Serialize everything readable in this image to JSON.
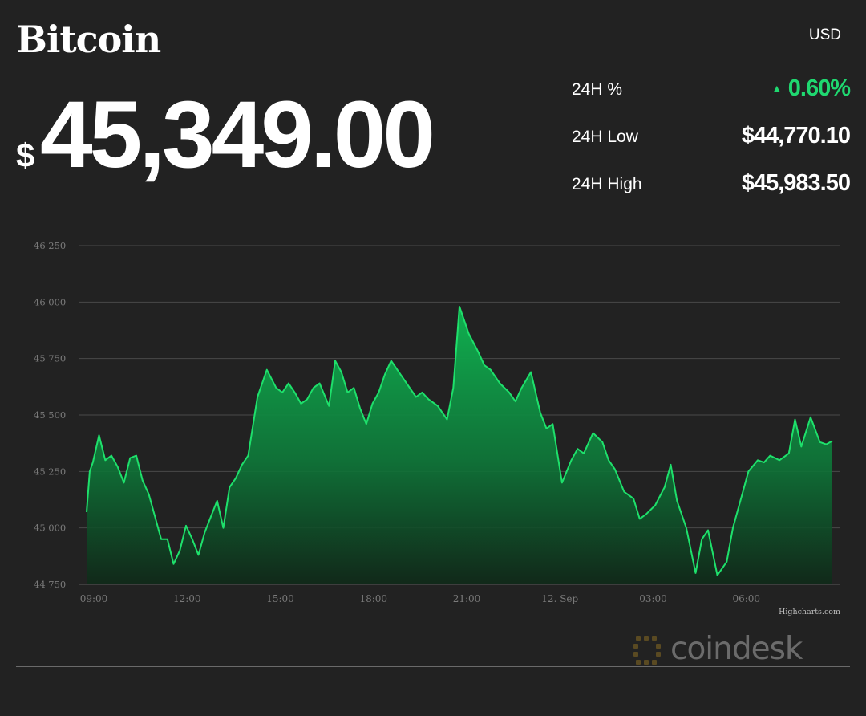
{
  "header": {
    "title": "Bitcoin",
    "currency": "USD",
    "price_symbol": "$",
    "price": "45,349.00"
  },
  "stats": [
    {
      "label": "24H %",
      "value": "0.60%",
      "direction": "up"
    },
    {
      "label": "24H Low",
      "value": "$44,770.10"
    },
    {
      "label": "24H High",
      "value": "$45,983.50"
    }
  ],
  "colors": {
    "background": "#222222",
    "line": "#1ee06b",
    "positive": "#1fd870",
    "grid": "#4a4a4a",
    "axis_text": "#7a7a7a"
  },
  "chart_data": {
    "type": "area",
    "title": "",
    "xlabel": "",
    "ylabel": "",
    "ylim": [
      44750,
      46250
    ],
    "yticks": [
      "46 250",
      "46 000",
      "45 750",
      "45 500",
      "45 250",
      "45 000",
      "44 750"
    ],
    "xticks": [
      "09:00",
      "12:00",
      "15:00",
      "18:00",
      "21:00",
      "12. Sep",
      "03:00",
      "06:00"
    ],
    "grid": true,
    "credit": "Highcharts.com",
    "series": [
      {
        "hours": [
          0,
          0.1,
          0.2,
          0.4,
          0.6,
          0.8,
          1.0,
          1.2,
          1.4,
          1.6,
          1.8,
          2.0,
          2.2,
          2.4,
          2.6,
          2.8,
          3.0,
          3.2,
          3.4,
          3.6,
          3.8,
          4.0,
          4.2,
          4.4,
          4.6,
          4.8,
          5.0,
          5.2,
          5.5,
          5.8,
          6.1,
          6.3,
          6.5,
          6.7,
          6.9,
          7.1,
          7.3,
          7.5,
          7.8,
          8.0,
          8.2,
          8.4,
          8.6,
          8.8,
          9.0,
          9.2,
          9.4,
          9.6,
          9.8,
          10.0,
          10.3,
          10.6,
          10.8,
          11.0,
          11.3,
          11.6,
          11.8,
          12.0,
          12.3,
          12.6,
          12.8,
          13.0,
          13.3,
          13.6,
          13.8,
          14.0,
          14.3,
          14.6,
          14.8,
          15.0,
          15.3,
          15.6,
          15.8,
          16.0,
          16.3,
          16.6,
          16.8,
          17.0,
          17.3,
          17.6,
          17.8,
          18.0,
          18.3,
          18.6,
          18.8,
          19.0,
          19.3,
          19.6,
          19.8,
          20.0,
          20.3,
          20.6,
          20.8,
          21.0,
          21.3,
          21.6,
          21.8,
          22.0,
          22.3,
          22.6,
          22.8,
          23.0,
          23.3,
          23.6,
          23.8,
          24.0
        ],
        "values": [
          45070,
          45250,
          45290,
          45410,
          45300,
          45320,
          45270,
          45200,
          45310,
          45320,
          45210,
          45150,
          45050,
          44950,
          44950,
          44840,
          44900,
          45010,
          44950,
          44880,
          44980,
          45050,
          45120,
          45000,
          45180,
          45220,
          45280,
          45320,
          45580,
          45700,
          45620,
          45600,
          45640,
          45600,
          45550,
          45570,
          45620,
          45640,
          45540,
          45740,
          45690,
          45600,
          45620,
          45530,
          45460,
          45550,
          45600,
          45680,
          45740,
          45700,
          45640,
          45580,
          45600,
          45570,
          45540,
          45480,
          45620,
          45980,
          45860,
          45780,
          45720,
          45700,
          45640,
          45600,
          45560,
          45620,
          45690,
          45510,
          45440,
          45460,
          45200,
          45300,
          45350,
          45330,
          45420,
          45380,
          45300,
          45260,
          45160,
          45130,
          45040,
          45060,
          45100,
          45180,
          45280,
          45120,
          45000,
          44800,
          44950,
          44990,
          44790,
          44850,
          45000,
          45100,
          45250,
          45300,
          45290,
          45320,
          45300,
          45330,
          45480,
          45360,
          45490,
          45380,
          45370,
          45385
        ]
      }
    ]
  },
  "watermark": {
    "text": "coindesk"
  }
}
